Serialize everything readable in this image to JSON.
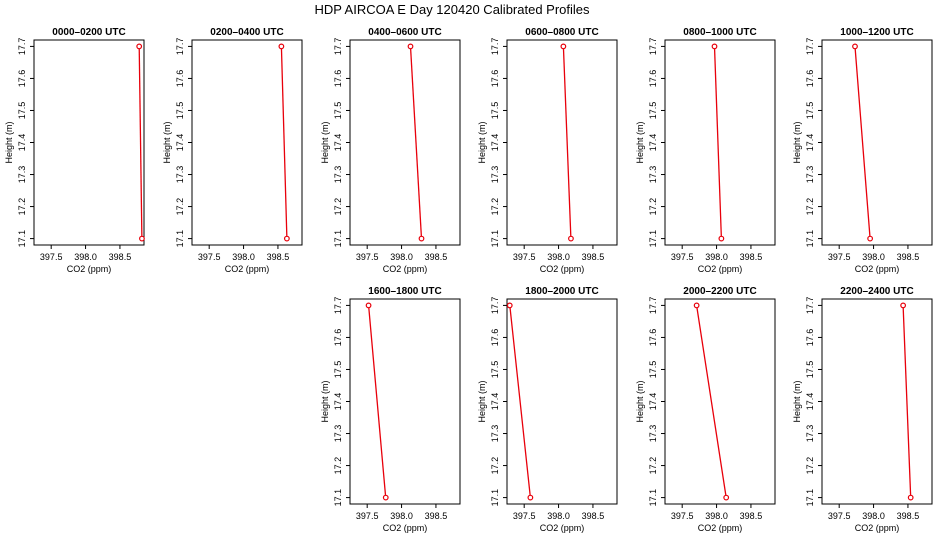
{
  "figure": {
    "title": "HDP AIRCOA E  Day 120420  Calibrated Profiles"
  },
  "style": {
    "line_color": "#e8000b",
    "marker_color": "#e8000b"
  },
  "chart_data": [
    {
      "type": "line",
      "title": "0000–0200 UTC",
      "xlabel": "CO2 (ppm)",
      "ylabel": "Height (m)",
      "xlim": [
        397.25,
        398.85
      ],
      "ylim": [
        17.08,
        17.72
      ],
      "xticks": [
        "397.5",
        "398.0",
        "398.5"
      ],
      "yticks": [
        "17.1",
        "17.2",
        "17.3",
        "17.4",
        "17.5",
        "17.6",
        "17.7"
      ],
      "series": [
        {
          "x": [
            398.82,
            398.78
          ],
          "y": [
            17.1,
            17.7
          ]
        }
      ]
    },
    {
      "type": "line",
      "title": "0200–0400 UTC",
      "xlabel": "CO2 (ppm)",
      "ylabel": "Height (m)",
      "xlim": [
        397.25,
        398.85
      ],
      "ylim": [
        17.08,
        17.72
      ],
      "xticks": [
        "397.5",
        "398.0",
        "398.5"
      ],
      "yticks": [
        "17.1",
        "17.2",
        "17.3",
        "17.4",
        "17.5",
        "17.6",
        "17.7"
      ],
      "series": [
        {
          "x": [
            398.63,
            398.55
          ],
          "y": [
            17.1,
            17.7
          ]
        }
      ]
    },
    {
      "type": "line",
      "title": "0400–0600 UTC",
      "xlabel": "CO2 (ppm)",
      "ylabel": "Height (m)",
      "xlim": [
        397.25,
        398.85
      ],
      "ylim": [
        17.08,
        17.72
      ],
      "xticks": [
        "397.5",
        "398.0",
        "398.5"
      ],
      "yticks": [
        "17.1",
        "17.2",
        "17.3",
        "17.4",
        "17.5",
        "17.6",
        "17.7"
      ],
      "series": [
        {
          "x": [
            398.29,
            398.13
          ],
          "y": [
            17.1,
            17.7
          ]
        }
      ]
    },
    {
      "type": "line",
      "title": "0600–0800 UTC",
      "xlabel": "CO2 (ppm)",
      "ylabel": "Height (m)",
      "xlim": [
        397.25,
        398.85
      ],
      "ylim": [
        17.08,
        17.72
      ],
      "xticks": [
        "397.5",
        "398.0",
        "398.5"
      ],
      "yticks": [
        "17.1",
        "17.2",
        "17.3",
        "17.4",
        "17.5",
        "17.6",
        "17.7"
      ],
      "series": [
        {
          "x": [
            398.18,
            398.07
          ],
          "y": [
            17.1,
            17.7
          ]
        }
      ]
    },
    {
      "type": "line",
      "title": "0800–1000 UTC",
      "xlabel": "CO2 (ppm)",
      "ylabel": "Height (m)",
      "xlim": [
        397.25,
        398.85
      ],
      "ylim": [
        17.08,
        17.72
      ],
      "xticks": [
        "397.5",
        "398.0",
        "398.5"
      ],
      "yticks": [
        "17.1",
        "17.2",
        "17.3",
        "17.4",
        "17.5",
        "17.6",
        "17.7"
      ],
      "series": [
        {
          "x": [
            398.07,
            397.97
          ],
          "y": [
            17.1,
            17.7
          ]
        }
      ]
    },
    {
      "type": "line",
      "title": "1000–1200 UTC",
      "xlabel": "CO2 (ppm)",
      "ylabel": "Height (m)",
      "xlim": [
        397.25,
        398.85
      ],
      "ylim": [
        17.08,
        17.72
      ],
      "xticks": [
        "397.5",
        "398.0",
        "398.5"
      ],
      "yticks": [
        "17.1",
        "17.2",
        "17.3",
        "17.4",
        "17.5",
        "17.6",
        "17.7"
      ],
      "series": [
        {
          "x": [
            397.95,
            397.73
          ],
          "y": [
            17.1,
            17.7
          ]
        }
      ]
    },
    {
      "type": "line",
      "title": "1600–1800 UTC",
      "xlabel": "CO2 (ppm)",
      "ylabel": "Height (m)",
      "xlim": [
        397.25,
        398.85
      ],
      "ylim": [
        17.08,
        17.72
      ],
      "xticks": [
        "397.5",
        "398.0",
        "398.5"
      ],
      "yticks": [
        "17.1",
        "17.2",
        "17.3",
        "17.4",
        "17.5",
        "17.6",
        "17.7"
      ],
      "series": [
        {
          "x": [
            397.77,
            397.52
          ],
          "y": [
            17.1,
            17.7
          ]
        }
      ]
    },
    {
      "type": "line",
      "title": "1800–2000 UTC",
      "xlabel": "CO2 (ppm)",
      "ylabel": "Height (m)",
      "xlim": [
        397.25,
        398.85
      ],
      "ylim": [
        17.08,
        17.72
      ],
      "xticks": [
        "397.5",
        "398.0",
        "398.5"
      ],
      "yticks": [
        "17.1",
        "17.2",
        "17.3",
        "17.4",
        "17.5",
        "17.6",
        "17.7"
      ],
      "series": [
        {
          "x": [
            397.59,
            397.29
          ],
          "y": [
            17.1,
            17.7
          ]
        }
      ]
    },
    {
      "type": "line",
      "title": "2000–2200 UTC",
      "xlabel": "CO2 (ppm)",
      "ylabel": "Height (m)",
      "xlim": [
        397.25,
        398.85
      ],
      "ylim": [
        17.08,
        17.72
      ],
      "xticks": [
        "397.5",
        "398.0",
        "398.5"
      ],
      "yticks": [
        "17.1",
        "17.2",
        "17.3",
        "17.4",
        "17.5",
        "17.6",
        "17.7"
      ],
      "series": [
        {
          "x": [
            398.14,
            397.71
          ],
          "y": [
            17.1,
            17.7
          ]
        }
      ]
    },
    {
      "type": "line",
      "title": "2200–2400 UTC",
      "xlabel": "CO2 (ppm)",
      "ylabel": "Height (m)",
      "xlim": [
        397.25,
        398.85
      ],
      "ylim": [
        17.08,
        17.72
      ],
      "xticks": [
        "397.5",
        "398.0",
        "398.5"
      ],
      "yticks": [
        "17.1",
        "17.2",
        "17.3",
        "17.4",
        "17.5",
        "17.6",
        "17.7"
      ],
      "series": [
        {
          "x": [
            398.54,
            398.43
          ],
          "y": [
            17.1,
            17.7
          ]
        }
      ]
    }
  ]
}
